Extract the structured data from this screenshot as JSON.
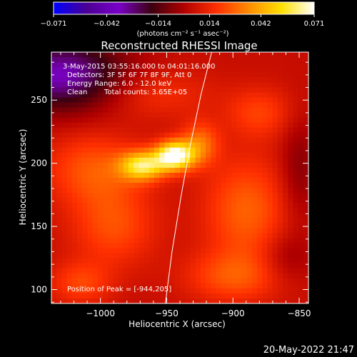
{
  "chart_data": {
    "type": "heatmap",
    "title": "Reconstructed RHESSI Image",
    "xlabel": "Heliocentric X (arcsec)",
    "ylabel": "Heliocentric Y (arcsec)",
    "xlim": [
      -1037,
      -843
    ],
    "ylim": [
      89,
      288
    ],
    "x_ticks": [
      -1000,
      -950,
      -900,
      -850
    ],
    "y_ticks": [
      100,
      150,
      200,
      250
    ],
    "x_tick_labels": [
      "−1000",
      "−950",
      "−900",
      "−850"
    ],
    "y_tick_labels": [
      "100",
      "150",
      "200",
      "250"
    ],
    "colorbar": {
      "min": -0.071,
      "max": 0.071,
      "ticks": [
        -0.071,
        -0.042,
        -0.014,
        0.014,
        0.042,
        0.071
      ],
      "tick_labels": [
        "−0.071",
        "−0.042",
        "−0.014",
        "0.014",
        "0.042",
        "0.071"
      ],
      "units_text": "(photons cm⁻² s⁻¹ asec⁻²)",
      "colormap": [
        "#0000ff",
        "#4a0094",
        "#7a00c8",
        "#3c0010",
        "#b00000",
        "#ff3000",
        "#ff8c00",
        "#ffe000",
        "#ffffff"
      ]
    },
    "annotations": {
      "time_range": "3-May-2015 03:55:16.000 to 04:01:16.000",
      "detectors": "Detectors: 3F 5F 6F 7F 8F 9F, Att 0",
      "energy_range": "Energy Range: 6.0 - 12.0 keV",
      "algorithm": "Clean",
      "total_counts": "Total counts: 3.65E+05",
      "peak_position": "Position of Peak = [-944,205]"
    },
    "peak": {
      "x": -944,
      "y": 205
    },
    "limb_curve": {
      "x": [
        -951,
        -946,
        -939,
        -932,
        -924,
        -916
      ],
      "y": [
        89,
        130,
        175,
        215,
        255,
        288
      ]
    },
    "blobs": [
      {
        "x": -944,
        "y": 206,
        "sx": 10,
        "sy": 8,
        "amp": 0.068
      },
      {
        "x": -968,
        "y": 198,
        "sx": 12,
        "sy": 8,
        "amp": 0.05
      },
      {
        "x": -925,
        "y": 215,
        "sx": 10,
        "sy": 12,
        "amp": 0.025
      },
      {
        "x": -890,
        "y": 162,
        "sx": 22,
        "sy": 30,
        "amp": 0.022
      },
      {
        "x": -880,
        "y": 240,
        "sx": 18,
        "sy": 14,
        "amp": 0.015
      },
      {
        "x": -1005,
        "y": 195,
        "sx": 25,
        "sy": 20,
        "amp": 0.02
      },
      {
        "x": -990,
        "y": 150,
        "sx": 22,
        "sy": 22,
        "amp": 0.018
      },
      {
        "x": -900,
        "y": 110,
        "sx": 25,
        "sy": 14,
        "amp": 0.018
      },
      {
        "x": -1015,
        "y": 105,
        "sx": 16,
        "sy": 12,
        "amp": 0.016
      },
      {
        "x": -960,
        "y": 255,
        "sx": 30,
        "sy": 14,
        "amp": 0.012
      },
      {
        "x": -1030,
        "y": 270,
        "sx": 35,
        "sy": 20,
        "amp": -0.04
      },
      {
        "x": -850,
        "y": 195,
        "sx": 10,
        "sy": 30,
        "amp": -0.012
      },
      {
        "x": -860,
        "y": 125,
        "sx": 14,
        "sy": 14,
        "amp": -0.01
      }
    ],
    "background_level": 0.005
  },
  "footer": {
    "date": "20-May-2022 21:47"
  }
}
